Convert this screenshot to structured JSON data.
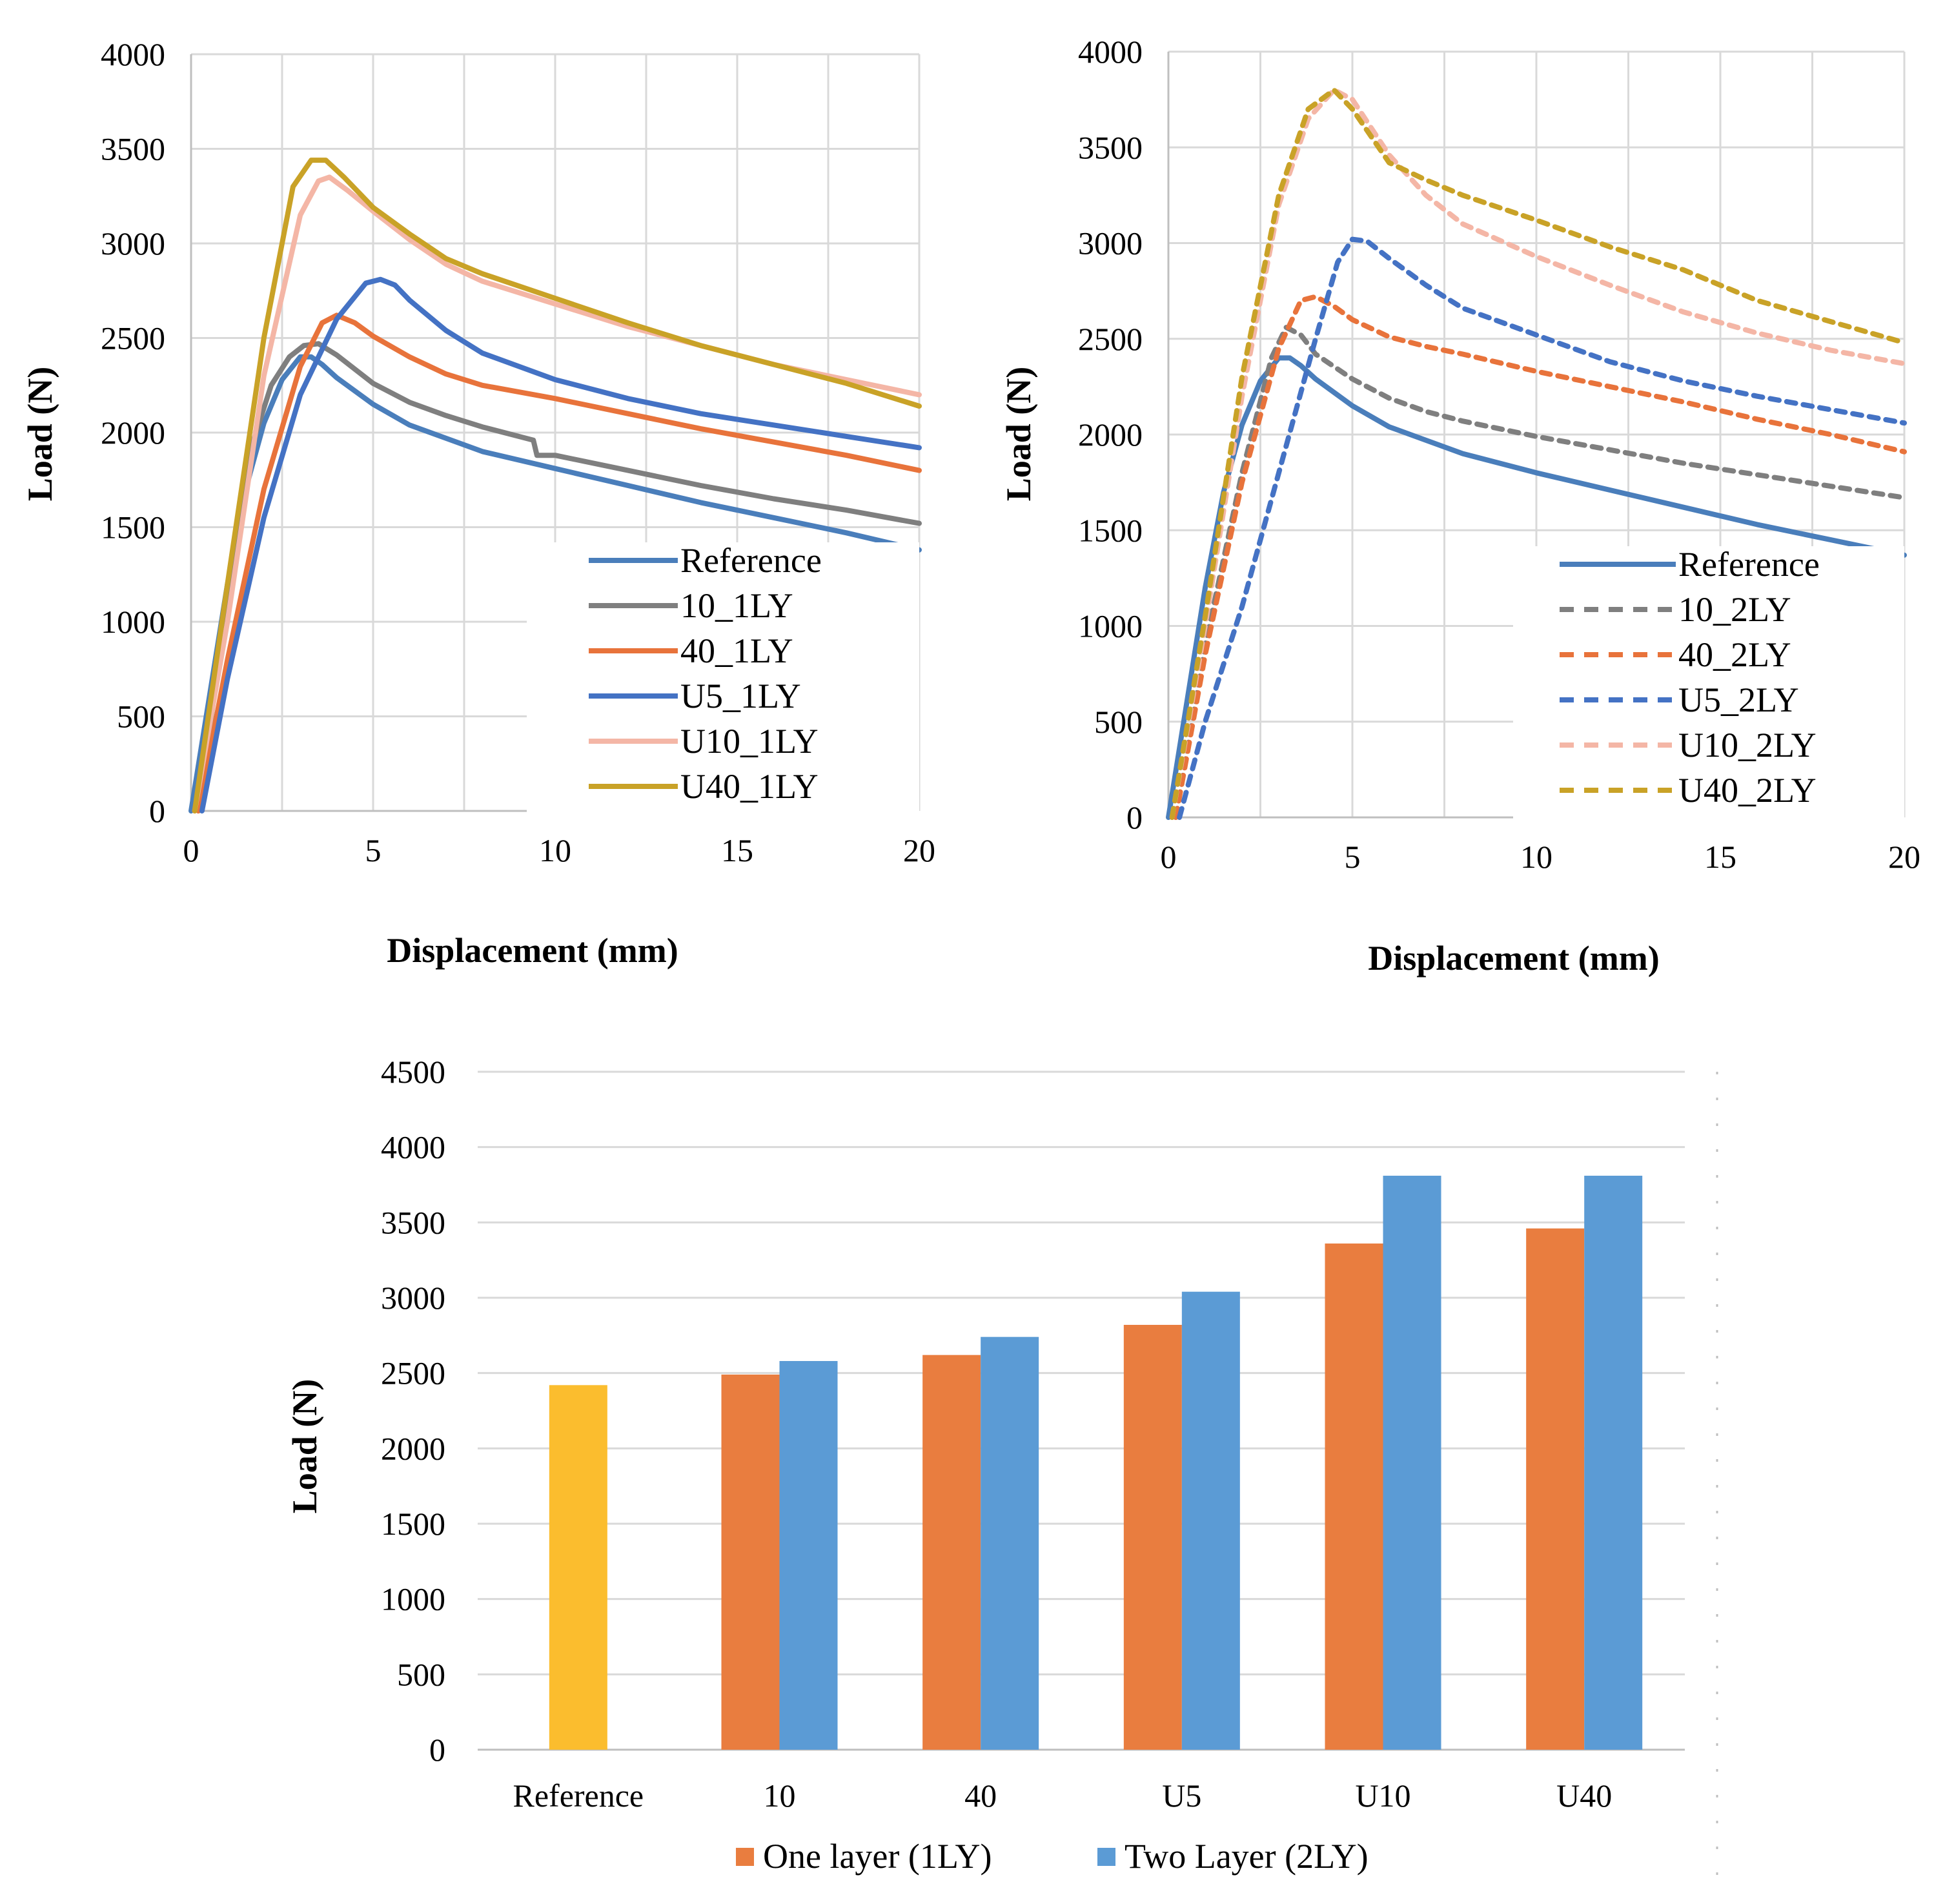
{
  "chart_data": [
    {
      "id": "chart1",
      "type": "line",
      "xlabel": "Displacement (mm)",
      "ylabel": "Load (N)",
      "xlim": [
        0,
        20
      ],
      "ylim": [
        0,
        4000
      ],
      "xticks": [
        "0",
        "5",
        "10",
        "15",
        "20"
      ],
      "yticks": [
        "0",
        "500",
        "1000",
        "1500",
        "2000",
        "2500",
        "3000",
        "3500",
        "4000"
      ],
      "grid": true,
      "legend_position": "bottom-right",
      "series": [
        {
          "name": "Reference",
          "color": "#4a7ebb",
          "dash": false,
          "points": [
            [
              0,
              0
            ],
            [
              0.5,
              600
            ],
            [
              1,
              1200
            ],
            [
              1.5,
              1700
            ],
            [
              2,
              2050
            ],
            [
              2.5,
              2280
            ],
            [
              3,
              2400
            ],
            [
              3.3,
              2400
            ],
            [
              3.6,
              2360
            ],
            [
              4,
              2290
            ],
            [
              5,
              2150
            ],
            [
              6,
              2040
            ],
            [
              7,
              1970
            ],
            [
              8,
              1900
            ],
            [
              10,
              1810
            ],
            [
              12,
              1720
            ],
            [
              14,
              1630
            ],
            [
              16,
              1550
            ],
            [
              18,
              1470
            ],
            [
              20,
              1380
            ]
          ]
        },
        {
          "name": "10_1LY",
          "color": "#7f7f7f",
          "dash": false,
          "points": [
            [
              0.2,
              0
            ],
            [
              0.7,
              700
            ],
            [
              1.2,
              1400
            ],
            [
              1.7,
              1950
            ],
            [
              2.2,
              2250
            ],
            [
              2.7,
              2400
            ],
            [
              3.1,
              2460
            ],
            [
              3.5,
              2470
            ],
            [
              4,
              2410
            ],
            [
              5,
              2260
            ],
            [
              6,
              2160
            ],
            [
              7,
              2090
            ],
            [
              8,
              2030
            ],
            [
              9,
              1980
            ],
            [
              9.4,
              1960
            ],
            [
              9.5,
              1880
            ],
            [
              10,
              1880
            ],
            [
              12,
              1800
            ],
            [
              14,
              1720
            ],
            [
              16,
              1650
            ],
            [
              18,
              1590
            ],
            [
              20,
              1520
            ]
          ]
        },
        {
          "name": "40_1LY",
          "color": "#e8733b",
          "dash": false,
          "points": [
            [
              0.2,
              0
            ],
            [
              1,
              800
            ],
            [
              2,
              1700
            ],
            [
              3,
              2350
            ],
            [
              3.6,
              2580
            ],
            [
              4,
              2620
            ],
            [
              4.5,
              2580
            ],
            [
              5,
              2510
            ],
            [
              6,
              2400
            ],
            [
              7,
              2310
            ],
            [
              8,
              2250
            ],
            [
              10,
              2180
            ],
            [
              12,
              2100
            ],
            [
              14,
              2020
            ],
            [
              16,
              1950
            ],
            [
              18,
              1880
            ],
            [
              20,
              1800
            ]
          ]
        },
        {
          "name": "U5_1LY",
          "color": "#4472c4",
          "dash": false,
          "points": [
            [
              0.3,
              0
            ],
            [
              1,
              700
            ],
            [
              2,
              1550
            ],
            [
              3,
              2200
            ],
            [
              4,
              2600
            ],
            [
              4.8,
              2790
            ],
            [
              5.2,
              2810
            ],
            [
              5.6,
              2780
            ],
            [
              6,
              2700
            ],
            [
              7,
              2540
            ],
            [
              8,
              2420
            ],
            [
              10,
              2280
            ],
            [
              12,
              2180
            ],
            [
              14,
              2100
            ],
            [
              16,
              2040
            ],
            [
              18,
              1980
            ],
            [
              20,
              1920
            ]
          ]
        },
        {
          "name": "U10_1LY",
          "color": "#f4b6a6",
          "dash": false,
          "points": [
            [
              0.1,
              0
            ],
            [
              1,
              1000
            ],
            [
              2,
              2300
            ],
            [
              3,
              3150
            ],
            [
              3.5,
              3330
            ],
            [
              3.8,
              3350
            ],
            [
              4.3,
              3280
            ],
            [
              5,
              3170
            ],
            [
              6,
              3020
            ],
            [
              7,
              2890
            ],
            [
              8,
              2800
            ],
            [
              10,
              2680
            ],
            [
              12,
              2560
            ],
            [
              14,
              2460
            ],
            [
              16,
              2360
            ],
            [
              18,
              2280
            ],
            [
              20,
              2200
            ]
          ]
        },
        {
          "name": "U40_1LY",
          "color": "#c9a227",
          "dash": false,
          "points": [
            [
              0.1,
              0
            ],
            [
              1,
              1200
            ],
            [
              2,
              2500
            ],
            [
              2.8,
              3300
            ],
            [
              3.3,
              3440
            ],
            [
              3.7,
              3440
            ],
            [
              4.2,
              3350
            ],
            [
              5,
              3190
            ],
            [
              6,
              3050
            ],
            [
              7,
              2920
            ],
            [
              8,
              2840
            ],
            [
              10,
              2710
            ],
            [
              12,
              2580
            ],
            [
              14,
              2460
            ],
            [
              16,
              2360
            ],
            [
              18,
              2260
            ],
            [
              20,
              2140
            ]
          ]
        }
      ]
    },
    {
      "id": "chart2",
      "type": "line",
      "xlabel": "Displacement (mm)",
      "ylabel": "Load (N)",
      "xlim": [
        0,
        20
      ],
      "ylim": [
        0,
        4000
      ],
      "xticks": [
        "0",
        "5",
        "10",
        "15",
        "20"
      ],
      "yticks": [
        "0",
        "500",
        "1000",
        "1500",
        "2000",
        "2500",
        "3000",
        "3500",
        "4000"
      ],
      "grid": true,
      "legend_position": "bottom-right",
      "series": [
        {
          "name": "Reference",
          "color": "#4a7ebb",
          "dash": false,
          "points": [
            [
              0,
              0
            ],
            [
              0.5,
              600
            ],
            [
              1,
              1200
            ],
            [
              1.5,
              1700
            ],
            [
              2,
              2050
            ],
            [
              2.5,
              2280
            ],
            [
              3,
              2400
            ],
            [
              3.3,
              2400
            ],
            [
              3.6,
              2360
            ],
            [
              4,
              2290
            ],
            [
              5,
              2150
            ],
            [
              6,
              2040
            ],
            [
              7,
              1970
            ],
            [
              8,
              1900
            ],
            [
              10,
              1800
            ],
            [
              12,
              1710
            ],
            [
              14,
              1620
            ],
            [
              16,
              1530
            ],
            [
              18,
              1450
            ],
            [
              20,
              1370
            ]
          ]
        },
        {
          "name": "10_2LY",
          "color": "#7f7f7f",
          "dash": true,
          "points": [
            [
              0.2,
              0
            ],
            [
              1,
              900
            ],
            [
              2,
              1800
            ],
            [
              2.8,
              2400
            ],
            [
              3.2,
              2560
            ],
            [
              3.6,
              2520
            ],
            [
              4,
              2420
            ],
            [
              5,
              2290
            ],
            [
              6,
              2190
            ],
            [
              7,
              2120
            ],
            [
              8,
              2070
            ],
            [
              10,
              1990
            ],
            [
              12,
              1920
            ],
            [
              14,
              1850
            ],
            [
              16,
              1790
            ],
            [
              18,
              1730
            ],
            [
              20,
              1670
            ]
          ]
        },
        {
          "name": "40_2LY",
          "color": "#e8733b",
          "dash": true,
          "points": [
            [
              0.2,
              0
            ],
            [
              1,
              850
            ],
            [
              2,
              1750
            ],
            [
              3,
              2450
            ],
            [
              3.6,
              2700
            ],
            [
              4,
              2720
            ],
            [
              4.5,
              2670
            ],
            [
              5,
              2600
            ],
            [
              6,
              2510
            ],
            [
              7,
              2460
            ],
            [
              8,
              2420
            ],
            [
              10,
              2330
            ],
            [
              12,
              2250
            ],
            [
              14,
              2170
            ],
            [
              16,
              2080
            ],
            [
              18,
              2000
            ],
            [
              20,
              1910
            ]
          ]
        },
        {
          "name": "U5_2LY",
          "color": "#4472c4",
          "dash": true,
          "points": [
            [
              0.3,
              0
            ],
            [
              1,
              500
            ],
            [
              2,
              1100
            ],
            [
              3,
              1800
            ],
            [
              4,
              2500
            ],
            [
              4.6,
              2900
            ],
            [
              5,
              3020
            ],
            [
              5.4,
              3010
            ],
            [
              6,
              2920
            ],
            [
              7,
              2780
            ],
            [
              8,
              2660
            ],
            [
              10,
              2520
            ],
            [
              12,
              2380
            ],
            [
              14,
              2280
            ],
            [
              16,
              2200
            ],
            [
              18,
              2130
            ],
            [
              20,
              2060
            ]
          ]
        },
        {
          "name": "U10_2LY",
          "color": "#f4b6a6",
          "dash": true,
          "points": [
            [
              0.1,
              0
            ],
            [
              1,
              1000
            ],
            [
              2,
              2200
            ],
            [
              3,
              3200
            ],
            [
              3.8,
              3650
            ],
            [
              4.5,
              3800
            ],
            [
              5,
              3750
            ],
            [
              6,
              3460
            ],
            [
              7,
              3250
            ],
            [
              8,
              3100
            ],
            [
              10,
              2930
            ],
            [
              12,
              2780
            ],
            [
              14,
              2640
            ],
            [
              16,
              2530
            ],
            [
              18,
              2440
            ],
            [
              20,
              2370
            ]
          ]
        },
        {
          "name": "U40_2LY",
          "color": "#c9a227",
          "dash": true,
          "points": [
            [
              0.1,
              0
            ],
            [
              1,
              1050
            ],
            [
              2,
              2300
            ],
            [
              3,
              3250
            ],
            [
              3.8,
              3700
            ],
            [
              4.5,
              3800
            ],
            [
              5,
              3700
            ],
            [
              6,
              3420
            ],
            [
              7,
              3330
            ],
            [
              8,
              3250
            ],
            [
              10,
              3120
            ],
            [
              12,
              2980
            ],
            [
              14,
              2860
            ],
            [
              16,
              2700
            ],
            [
              18,
              2590
            ],
            [
              20,
              2480
            ]
          ]
        }
      ]
    },
    {
      "id": "chart3",
      "type": "bar",
      "ylabel": "Load (N)",
      "ylim": [
        0,
        4500
      ],
      "yticks": [
        "0",
        "500",
        "1000",
        "1500",
        "2000",
        "2500",
        "3000",
        "3500",
        "4000",
        "4500"
      ],
      "categories": [
        "Reference",
        "10",
        "40",
        "U5",
        "U10",
        "U40"
      ],
      "grid": true,
      "legend_position": "bottom",
      "reference": {
        "category": "Reference",
        "value": 2420,
        "color": "#fbbd2e"
      },
      "series": [
        {
          "name": "One layer (1LY)",
          "color": "#e97d3f",
          "values": [
            null,
            2490,
            2620,
            2820,
            3360,
            3460
          ]
        },
        {
          "name": "Two Layer (2LY)",
          "color": "#5b9bd5",
          "values": [
            null,
            2580,
            2740,
            3040,
            3810,
            3810
          ]
        }
      ]
    }
  ]
}
